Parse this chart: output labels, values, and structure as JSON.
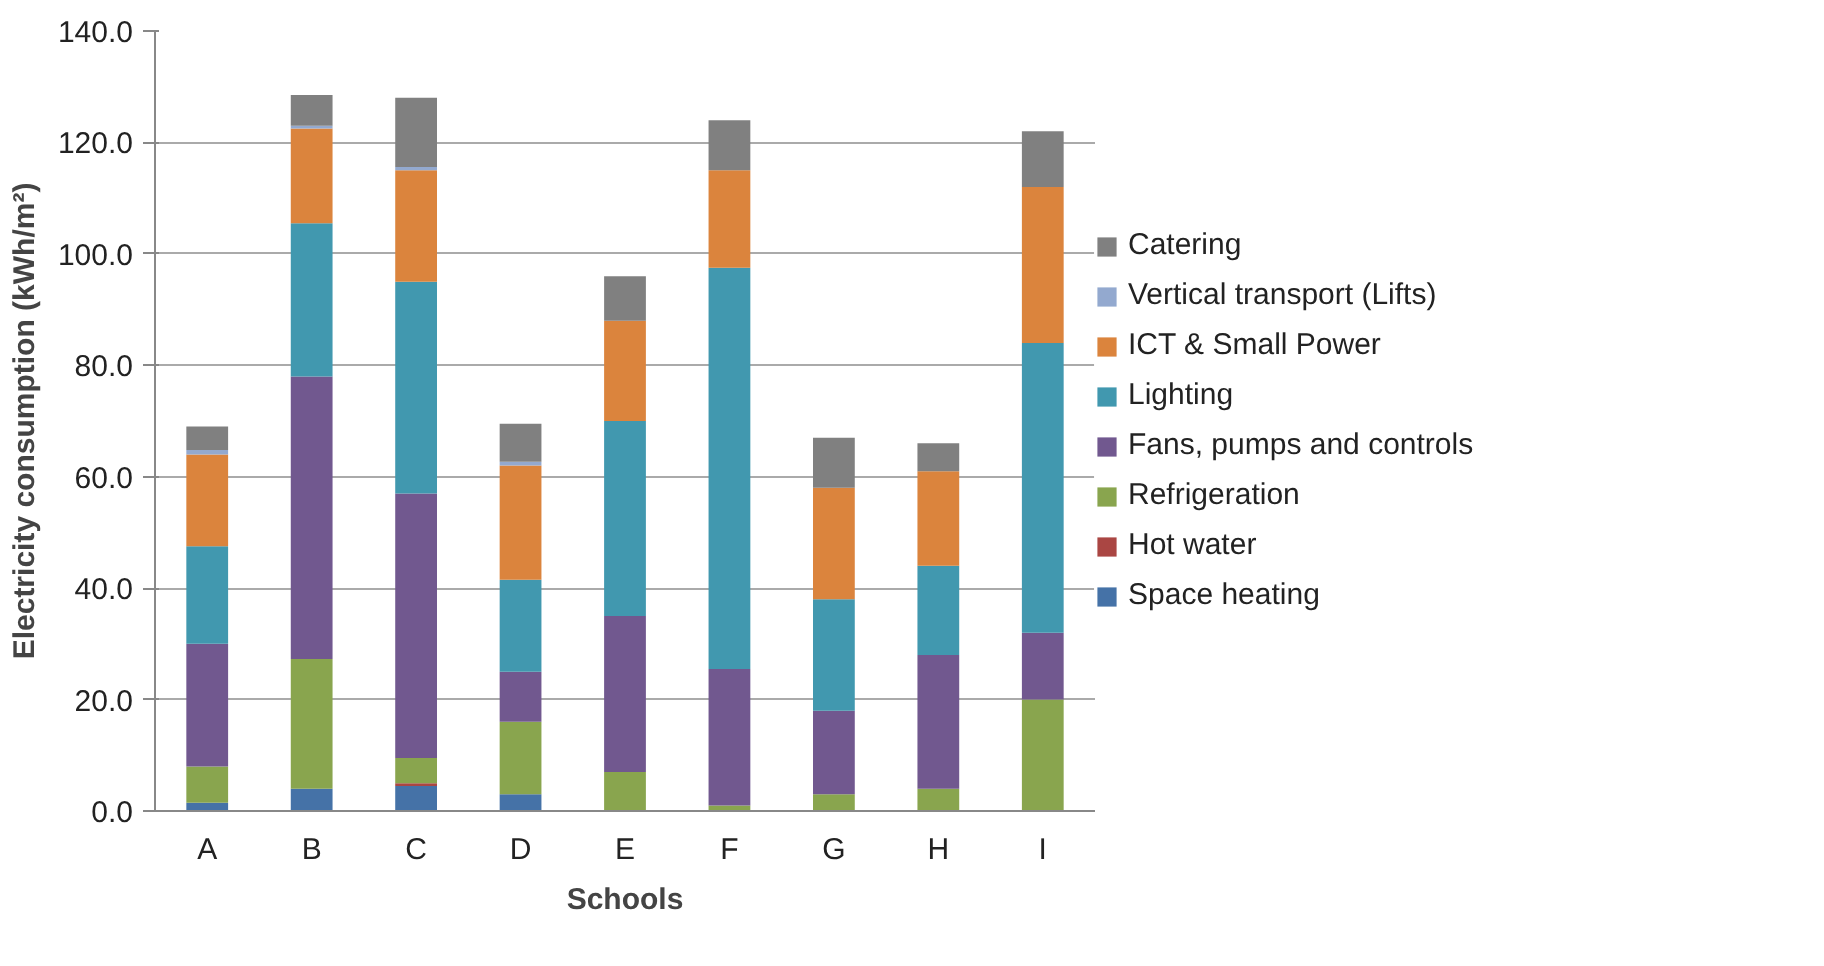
{
  "chart_data": {
    "type": "bar",
    "stacked": true,
    "xlabel": "Schools",
    "ylabel": "Electricity consumption (kWh/m²)",
    "categories": [
      "A",
      "B",
      "C",
      "D",
      "E",
      "F",
      "G",
      "H",
      "I"
    ],
    "ylim": [
      0,
      140
    ],
    "yticks": [
      {
        "value": 0,
        "label": "0.0"
      },
      {
        "value": 20,
        "label": "20.0"
      },
      {
        "value": 40,
        "label": "40.0"
      },
      {
        "value": 60,
        "label": "60.0"
      },
      {
        "value": 80,
        "label": "80.0"
      },
      {
        "value": 100,
        "label": "100.0"
      },
      {
        "value": 120,
        "label": "120.0"
      },
      {
        "value": 140,
        "label": "140.0"
      }
    ],
    "grid": "y",
    "legend": "right",
    "series": [
      {
        "name": "Space heating",
        "color": "#4572a7",
        "values": [
          1.5,
          4,
          4.5,
          3,
          0,
          0,
          0,
          0,
          0
        ]
      },
      {
        "name": "Hot water",
        "color": "#aa4643",
        "values": [
          0,
          0,
          0.5,
          0,
          0,
          0,
          0,
          0,
          0
        ]
      },
      {
        "name": "Refrigeration",
        "color": "#89a54e",
        "values": [
          6.5,
          23.3,
          4.5,
          13,
          7,
          1,
          3,
          4,
          20
        ]
      },
      {
        "name": "Fans, pumps and controls",
        "color": "#71588f",
        "values": [
          22,
          50.7,
          47.5,
          9,
          28,
          24.5,
          15,
          24,
          12
        ]
      },
      {
        "name": "Lighting",
        "color": "#4198af",
        "values": [
          17.5,
          27.5,
          38,
          16.5,
          35,
          72,
          20,
          16,
          52
        ]
      },
      {
        "name": "ICT & Small Power",
        "color": "#db843d",
        "values": [
          16.5,
          17,
          20,
          20.5,
          18,
          17.5,
          20,
          17,
          28
        ]
      },
      {
        "name": "Vertical transport (Lifts)",
        "color": "#93a9cf",
        "values": [
          0.8,
          0.5,
          0.6,
          0.7,
          0,
          0,
          0,
          0,
          0
        ]
      },
      {
        "name": "Catering",
        "color": "#808080",
        "values": [
          4.2,
          5.5,
          12.4,
          6.8,
          8,
          9,
          9,
          5,
          10
        ]
      }
    ]
  }
}
